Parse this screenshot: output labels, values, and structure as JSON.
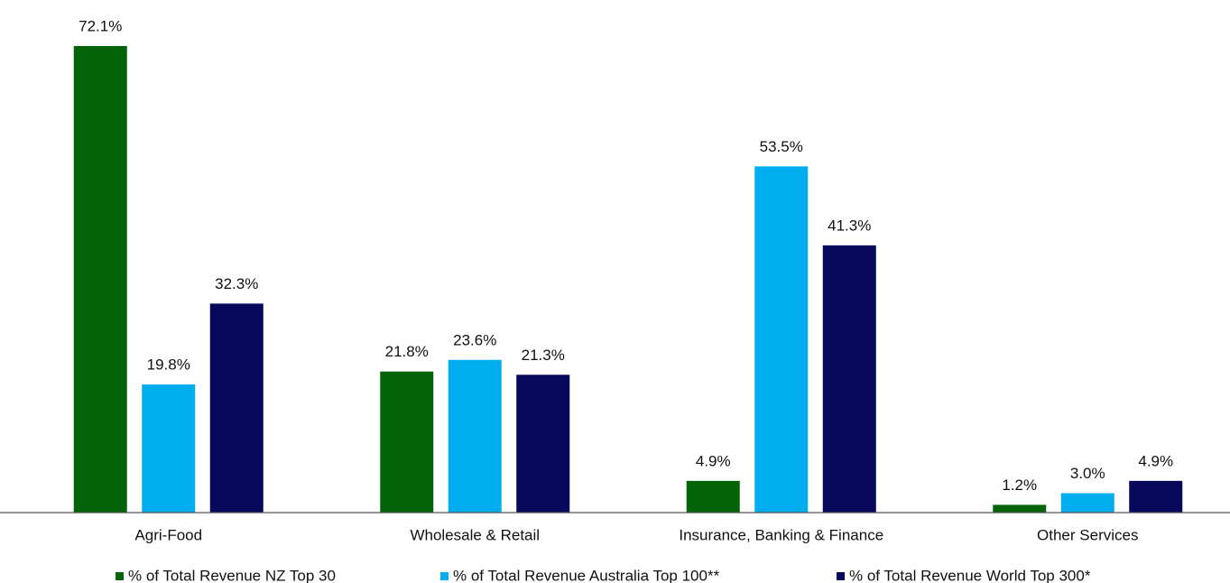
{
  "chart_data": {
    "type": "bar",
    "categories": [
      "Agri-Food",
      "Wholesale & Retail",
      "Insurance, Banking & Finance",
      "Other Services"
    ],
    "series": [
      {
        "name": "% of Total Revenue NZ Top 30",
        "color": "#036309",
        "values": [
          72.1,
          21.8,
          4.9,
          1.2
        ],
        "value_labels": [
          "72.1%",
          "21.8%",
          "4.9%",
          "1.2%"
        ]
      },
      {
        "name": "% of Total Revenue Australia Top 100**",
        "color": "#00adee",
        "values": [
          19.8,
          23.6,
          53.5,
          3.0
        ],
        "value_labels": [
          "19.8%",
          "23.6%",
          "53.5%",
          "3.0%"
        ]
      },
      {
        "name": "% of Total Revenue World Top 300*",
        "color": "#07075c",
        "values": [
          32.3,
          21.3,
          41.3,
          4.9
        ],
        "value_labels": [
          "32.3%",
          "21.3%",
          "41.3%",
          "4.9%"
        ]
      }
    ],
    "legend": "bottom"
  }
}
